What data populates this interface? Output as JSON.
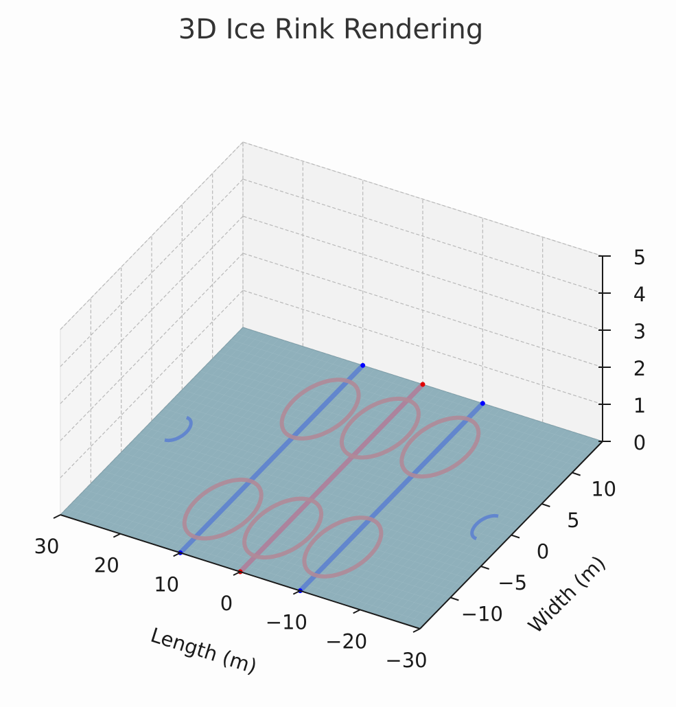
{
  "chart_data": {
    "type": "surface3d",
    "title": "3D Ice Rink Rendering",
    "xlabel": "Length (m)",
    "ylabel": "Width (m)",
    "zlabel": "",
    "xlim": [
      -30,
      30
    ],
    "ylim": [
      -15,
      15
    ],
    "zlim": [
      0,
      5
    ],
    "x_ticks": [
      "−30",
      "−20",
      "−10",
      "0",
      "10",
      "20",
      "30"
    ],
    "y_ticks": [
      "−10",
      "−5",
      "0",
      "5",
      "10"
    ],
    "z_ticks": [
      "0",
      "1",
      "2",
      "3",
      "4",
      "5"
    ],
    "grid": true,
    "rink_color": "#8fb0bb",
    "blue_line_color": "#5b7fd1",
    "red_line_color": "#b07f9a",
    "circle_color": "#b08a98",
    "blue_lines_x": [
      -10,
      10
    ],
    "red_line_x": 0,
    "circles": [
      {
        "x": -10,
        "y": 8,
        "r": 4.5
      },
      {
        "x": 0,
        "y": 8,
        "r": 4.5
      },
      {
        "x": 10,
        "y": 8,
        "r": 4.5
      },
      {
        "x": -10,
        "y": -8,
        "r": 4.5
      },
      {
        "x": 0,
        "y": -8,
        "r": 4.5
      },
      {
        "x": 10,
        "y": -8,
        "r": 4.5
      }
    ],
    "goal_arcs": [
      {
        "x": -26,
        "y": 0
      },
      {
        "x": 26,
        "y": 0
      }
    ]
  }
}
